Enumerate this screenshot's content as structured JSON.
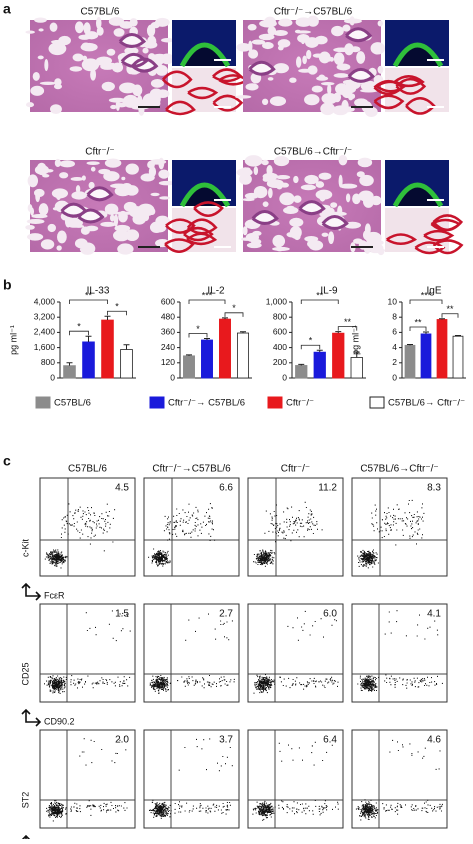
{
  "panel_labels": [
    "a",
    "b",
    "c"
  ],
  "groups": [
    "C57BL/6",
    "Cftr⁻/⁻→C57BL/6",
    "Cftr⁻/⁻",
    "C57BL/6→Cftr⁻/⁻"
  ],
  "legend": [
    {
      "name": "C57BL/6",
      "color": "#8c8c8c"
    },
    {
      "name": "Cftr⁻/⁻→ C57BL/6",
      "color": "#1a1adb"
    },
    {
      "name": "Cftr⁻/⁻",
      "color": "#e8191d"
    },
    {
      "name": "C57BL/6→ Cftr⁻/⁻",
      "color": "#ffffff"
    }
  ],
  "chart_data": [
    {
      "type": "bar",
      "title": "IL-33",
      "ylabel": "pg ml⁻¹",
      "ylim": [
        0,
        4000
      ],
      "yticks": [
        0,
        800,
        {
          "value": 1600,
          "label": "1,600"
        },
        {
          "value": 2400,
          "label": "2,400"
        },
        {
          "value": 3200,
          "label": "3,200"
        },
        {
          "value": 4000,
          "label": "4,000"
        }
      ],
      "values": [
        650,
        1900,
        3050,
        1500
      ],
      "errors": [
        150,
        300,
        200,
        250
      ],
      "significance": [
        {
          "label": "*",
          "bars": [
            0,
            1
          ]
        },
        {
          "label": "**",
          "bars": [
            0,
            2
          ]
        },
        {
          "label": "*",
          "bars": [
            2,
            3
          ]
        }
      ]
    },
    {
      "type": "bar",
      "title": "IL-2",
      "ylim": [
        0,
        600
      ],
      "yticks": [
        0,
        120,
        240,
        360,
        480,
        600
      ],
      "values": [
        175,
        300,
        465,
        355
      ],
      "errors": [
        8,
        12,
        10,
        10
      ],
      "significance": [
        {
          "label": "*",
          "bars": [
            0,
            1
          ]
        },
        {
          "label": "***",
          "bars": [
            0,
            2
          ]
        },
        {
          "label": "*",
          "bars": [
            2,
            3
          ]
        }
      ]
    },
    {
      "type": "bar",
      "title": "IL-9",
      "ylim": [
        0,
        1000
      ],
      "yticks": [
        0,
        200,
        400,
        600,
        800,
        {
          "value": 1000,
          "label": "1,000"
        }
      ],
      "values": [
        165,
        340,
        590,
        270
      ],
      "errors": [
        15,
        25,
        20,
        70
      ],
      "significance": [
        {
          "label": "*",
          "bars": [
            0,
            1
          ]
        },
        {
          "label": "**",
          "bars": [
            0,
            2
          ]
        },
        {
          "label": "**",
          "bars": [
            2,
            3
          ]
        }
      ]
    },
    {
      "type": "bar",
      "title": "IgE",
      "ylabel": "pg ml⁻¹",
      "ylim": [
        0,
        10
      ],
      "yticks": [
        0,
        2,
        4,
        6,
        8,
        10
      ],
      "values": [
        4.3,
        5.8,
        7.7,
        5.5
      ],
      "errors": [
        0.1,
        0.25,
        0.1,
        0.1
      ],
      "significance": [
        {
          "label": "**",
          "bars": [
            0,
            1
          ]
        },
        {
          "label": "***",
          "bars": [
            0,
            2
          ]
        },
        {
          "label": "**",
          "bars": [
            2,
            3
          ]
        }
      ]
    }
  ],
  "flow": {
    "rows": [
      {
        "ylabel": "c-Kit",
        "xlabel": "FcεR",
        "percentages": [
          "4.5",
          "6.6",
          "11.2",
          "8.3"
        ]
      },
      {
        "ylabel": "CD25",
        "xlabel": "CD90.2",
        "percentages": [
          "1.5",
          "2.7",
          "6.0",
          "4.1"
        ]
      },
      {
        "ylabel": "ST2",
        "percentages": [
          "2.0",
          "3.7",
          "6.4",
          "4.6"
        ]
      }
    ]
  }
}
